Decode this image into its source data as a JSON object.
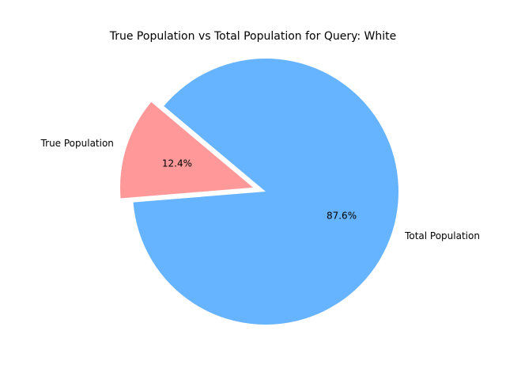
{
  "chart_data": {
    "type": "pie",
    "title": "True Population vs Total Population for Query: White",
    "labels": [
      "True Population",
      "Total Population"
    ],
    "values": [
      12.4,
      87.6
    ],
    "percent_labels": [
      "12.4%",
      "87.6%"
    ],
    "colors": [
      "#ff9999",
      "#66b3ff"
    ],
    "explode": [
      0.1,
      0
    ],
    "start_angle_deg": 140
  }
}
